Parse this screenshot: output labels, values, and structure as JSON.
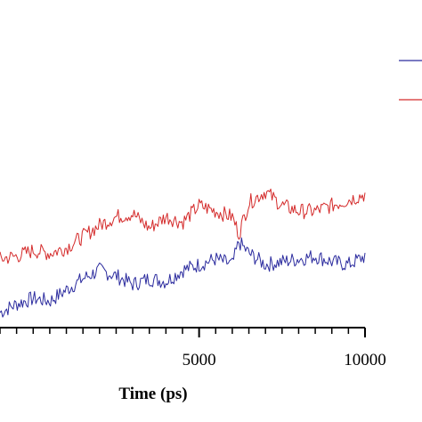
{
  "chart_data": {
    "type": "line",
    "xlabel": "Time (ps)",
    "ylabel": "",
    "xlim": [
      -1000,
      10000
    ],
    "ylim": [
      0,
      1
    ],
    "x_major_ticks": [
      5000,
      10000
    ],
    "x_tick_labels": [
      "5000",
      "10000"
    ],
    "x_minor_step": 500,
    "grid": false,
    "legend_position": "top-right",
    "series": [
      {
        "name": "",
        "color": "#2b2b9e",
        "x": [
          -1000,
          -500,
          0,
          500,
          1000,
          1500,
          2000,
          2500,
          3000,
          3500,
          4000,
          4500,
          5000,
          5500,
          6000,
          6200,
          6500,
          7000,
          7500,
          8000,
          8500,
          9000,
          9500,
          10000
        ],
        "values": [
          0.13,
          0.16,
          0.18,
          0.17,
          0.21,
          0.25,
          0.28,
          0.26,
          0.23,
          0.25,
          0.24,
          0.28,
          0.3,
          0.32,
          0.3,
          0.38,
          0.34,
          0.3,
          0.31,
          0.32,
          0.33,
          0.31,
          0.3,
          0.33
        ]
      },
      {
        "name": "",
        "color": "#d42a2a",
        "x": [
          -1000,
          -500,
          0,
          500,
          1000,
          1500,
          2000,
          2500,
          3000,
          3500,
          4000,
          4500,
          5000,
          5500,
          6000,
          6200,
          6500,
          7000,
          7500,
          8000,
          8500,
          9000,
          9500,
          10000
        ],
        "values": [
          0.32,
          0.33,
          0.35,
          0.34,
          0.36,
          0.4,
          0.44,
          0.47,
          0.48,
          0.43,
          0.47,
          0.45,
          0.51,
          0.49,
          0.47,
          0.41,
          0.52,
          0.56,
          0.51,
          0.49,
          0.49,
          0.51,
          0.53,
          0.55
        ]
      }
    ]
  }
}
